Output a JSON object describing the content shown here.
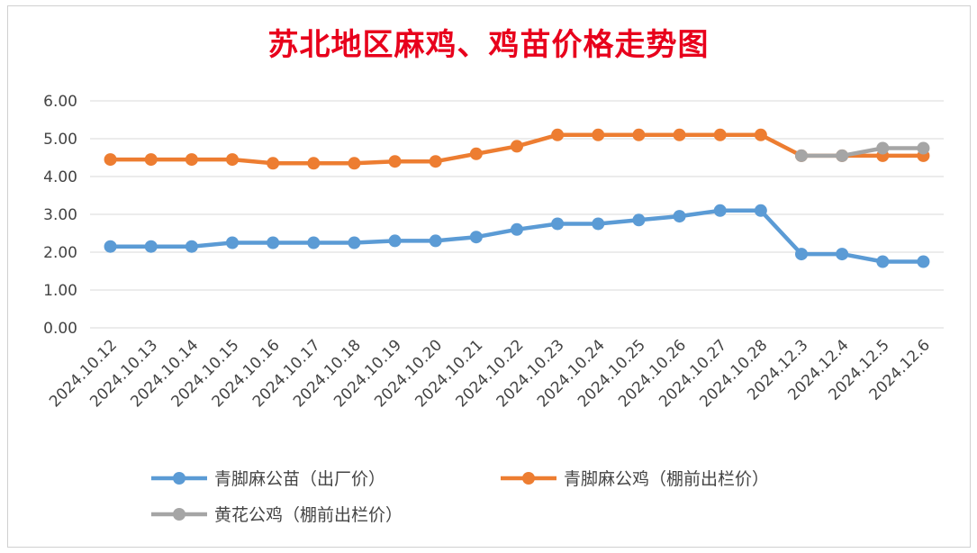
{
  "chart_data": {
    "type": "line",
    "title": "苏北地区麻鸡、鸡苗价格走势图",
    "xlabel": "",
    "ylabel": "",
    "ylim": [
      0,
      6
    ],
    "yticks": [
      "0.00",
      "1.00",
      "2.00",
      "3.00",
      "4.00",
      "5.00",
      "6.00"
    ],
    "grid": true,
    "legend_position": "bottom",
    "categories": [
      "2024.10.12",
      "2024.10.13",
      "2024.10.14",
      "2024.10.15",
      "2024.10.16",
      "2024.10.17",
      "2024.10.18",
      "2024.10.19",
      "2024.10.20",
      "2024.10.21",
      "2024.10.22",
      "2024.10.23",
      "2024.10.24",
      "2024.10.25",
      "2024.10.26",
      "2024.10.27",
      "2024.10.28",
      "2024.12.3",
      "2024.12.4",
      "2024.12.5",
      "2024.12.6"
    ],
    "series": [
      {
        "name": "青脚麻公苗（出厂价）",
        "color": "#5b9bd5",
        "values": [
          2.15,
          2.15,
          2.15,
          2.25,
          2.25,
          2.25,
          2.25,
          2.3,
          2.3,
          2.4,
          2.6,
          2.75,
          2.75,
          2.85,
          2.95,
          3.1,
          3.1,
          1.95,
          1.95,
          1.75,
          1.75
        ]
      },
      {
        "name": "青脚麻公鸡（棚前出栏价）",
        "color": "#ed7d31",
        "values": [
          4.45,
          4.45,
          4.45,
          4.45,
          4.35,
          4.35,
          4.35,
          4.4,
          4.4,
          4.6,
          4.8,
          5.1,
          5.1,
          5.1,
          5.1,
          5.1,
          5.1,
          4.55,
          4.55,
          4.55,
          4.55
        ]
      },
      {
        "name": "黄花公鸡（棚前出栏价）",
        "color": "#a5a5a5",
        "values": [
          null,
          null,
          null,
          null,
          null,
          null,
          null,
          null,
          null,
          null,
          null,
          null,
          null,
          null,
          null,
          null,
          null,
          4.55,
          4.55,
          4.75,
          4.75
        ]
      }
    ]
  }
}
